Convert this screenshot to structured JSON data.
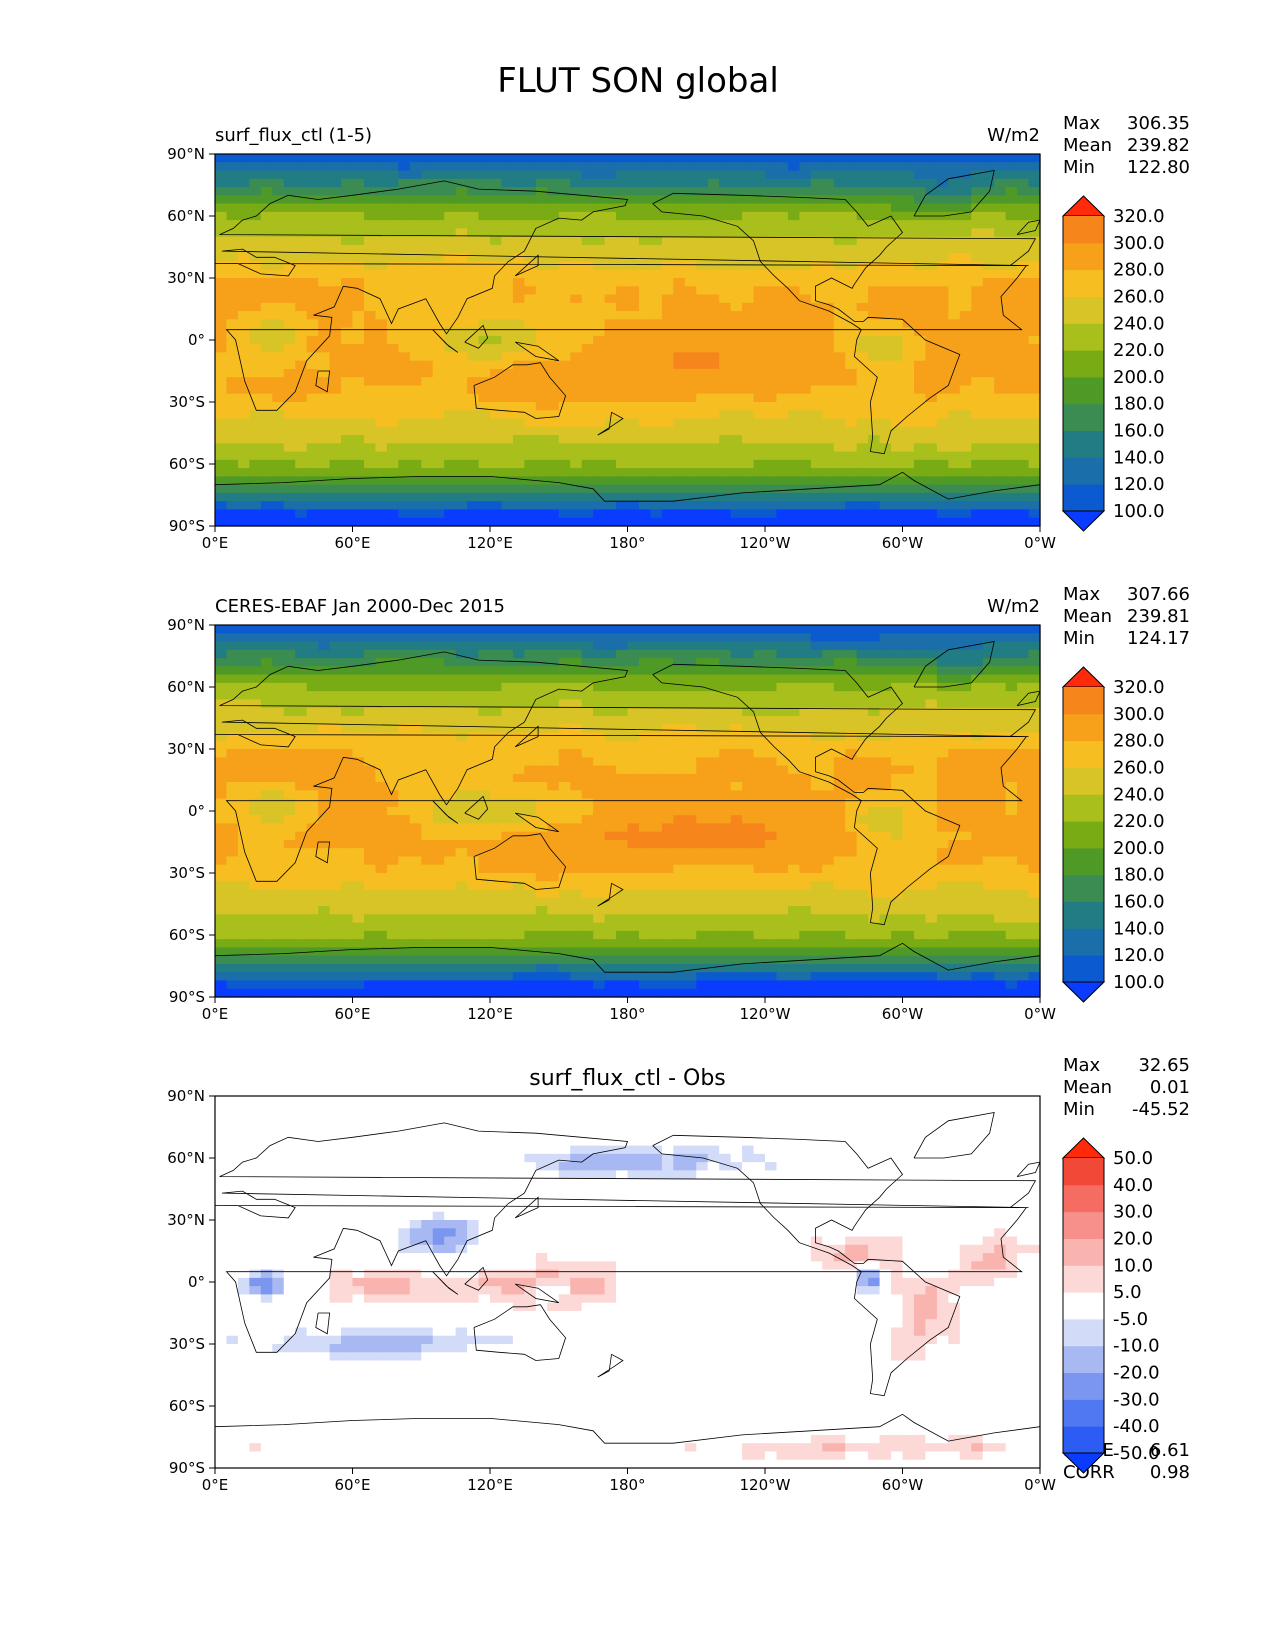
{
  "figure_title": "FLUT SON global",
  "chart_data": [
    {
      "type": "heatmap",
      "title_left": "surf_flux_ctl (1-5)",
      "title_center": "",
      "units": "W/m2",
      "stats": [
        {
          "label": "Max",
          "value": "306.35"
        },
        {
          "label": "Mean",
          "value": "239.82"
        },
        {
          "label": "Min",
          "value": "122.80"
        }
      ],
      "extra_stats": [],
      "colorbar": {
        "ticks": [
          "100.0",
          "120.0",
          "140.0",
          "160.0",
          "180.0",
          "200.0",
          "220.0",
          "240.0",
          "260.0",
          "280.0",
          "300.0",
          "320.0"
        ],
        "colors": [
          "#0a3cff",
          "#0c5ad0",
          "#1a6eaa",
          "#217c84",
          "#3a8c52",
          "#4f9a26",
          "#78ab14",
          "#a9bf1c",
          "#d8c426",
          "#f7be22",
          "#f7a11a",
          "#f6861c",
          "#f76a10",
          "#ff2a0a"
        ]
      },
      "xticks": [
        "0°E",
        "60°E",
        "120°E",
        "180°",
        "120°W",
        "60°W",
        "0°W"
      ],
      "yticks": [
        "90°N",
        "60°N",
        "30°N",
        "0°",
        "30°S",
        "60°S",
        "90°S"
      ],
      "xlim": [
        0,
        360
      ],
      "ylim": [
        -90,
        90
      ],
      "field": "control"
    },
    {
      "type": "heatmap",
      "title_left": "CERES-EBAF Jan 2000-Dec 2015",
      "title_center": "",
      "units": "W/m2",
      "stats": [
        {
          "label": "Max",
          "value": "307.66"
        },
        {
          "label": "Mean",
          "value": "239.81"
        },
        {
          "label": "Min",
          "value": "124.17"
        }
      ],
      "extra_stats": [],
      "colorbar": {
        "ticks": [
          "100.0",
          "120.0",
          "140.0",
          "160.0",
          "180.0",
          "200.0",
          "220.0",
          "240.0",
          "260.0",
          "280.0",
          "300.0",
          "320.0"
        ],
        "colors": [
          "#0a3cff",
          "#0c5ad0",
          "#1a6eaa",
          "#217c84",
          "#3a8c52",
          "#4f9a26",
          "#78ab14",
          "#a9bf1c",
          "#d8c426",
          "#f7be22",
          "#f7a11a",
          "#f6861c",
          "#f76a10",
          "#ff2a0a"
        ]
      },
      "xticks": [
        "0°E",
        "60°E",
        "120°E",
        "180°",
        "120°W",
        "60°W",
        "0°W"
      ],
      "yticks": [
        "90°N",
        "60°N",
        "30°N",
        "0°",
        "30°S",
        "60°S",
        "90°S"
      ],
      "xlim": [
        0,
        360
      ],
      "ylim": [
        -90,
        90
      ],
      "field": "obs"
    },
    {
      "type": "heatmap",
      "title_left": "",
      "title_center": "surf_flux_ctl - Obs",
      "units": "",
      "stats": [
        {
          "label": "Max",
          "value": "32.65"
        },
        {
          "label": "Mean",
          "value": "0.01"
        },
        {
          "label": "Min",
          "value": "-45.52"
        }
      ],
      "extra_stats": [
        {
          "label": "RMSE",
          "value": "6.61"
        },
        {
          "label": "CORR",
          "value": "0.98"
        }
      ],
      "colorbar": {
        "ticks": [
          "-50.0",
          "-40.0",
          "-30.0",
          "-20.0",
          "-10.0",
          "-5.0",
          "5.0",
          "10.0",
          "20.0",
          "30.0",
          "40.0",
          "50.0"
        ],
        "colors": [
          "#0a3cff",
          "#2d5cf5",
          "#5078f0",
          "#7a96ee",
          "#a8b8f2",
          "#d2dcf8",
          "#ffffff",
          "#fcd8d6",
          "#f9b4b0",
          "#f7908a",
          "#f46c62",
          "#f24838",
          "#ff2a0a"
        ]
      },
      "xticks": [
        "0°E",
        "60°E",
        "120°E",
        "180°",
        "120°W",
        "60°W",
        "0°W"
      ],
      "yticks": [
        "90°N",
        "60°N",
        "30°N",
        "0°",
        "30°S",
        "60°S",
        "90°S"
      ],
      "xlim": [
        0,
        360
      ],
      "ylim": [
        -90,
        90
      ],
      "field": "diff"
    }
  ]
}
